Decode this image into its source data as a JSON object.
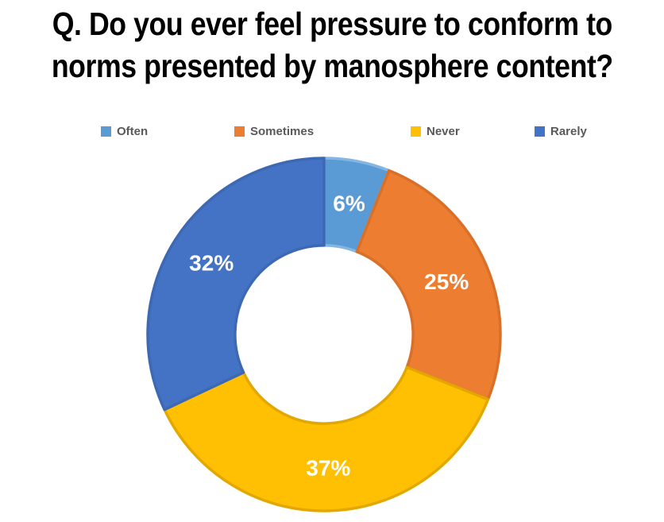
{
  "title": {
    "line1": "Q. Do you ever feel pressure to conform to",
    "line2": "norms presented by manosphere content?"
  },
  "legend": [
    {
      "label": "Often",
      "color": "#5B9BD5"
    },
    {
      "label": "Sometimes",
      "color": "#ED7D31"
    },
    {
      "label": "Never",
      "color": "#FFC003"
    },
    {
      "label": "Rarely",
      "color": "#4472C4"
    }
  ],
  "chart_data": {
    "type": "pie",
    "subtype": "donut",
    "title": "Q. Do you ever feel pressure to conform to norms presented by manosphere content?",
    "categories": [
      "Often",
      "Sometimes",
      "Never",
      "Rarely"
    ],
    "values": [
      6,
      25,
      37,
      32
    ],
    "labels": [
      "6%",
      "25%",
      "37%",
      "32%"
    ],
    "unit": "%",
    "colors": [
      "#5B9BD5",
      "#ED7D31",
      "#FFC003",
      "#4472C4"
    ],
    "edge_colors": [
      "#84B6E3",
      "#D8702A",
      "#E2A800",
      "#3D68B4"
    ],
    "label_color": "#FFFFFF",
    "start_angle_deg": 0,
    "direction": "clockwise",
    "donut_hole_ratio": 0.505,
    "legend_position": "top",
    "background": "#FFFFFF"
  }
}
